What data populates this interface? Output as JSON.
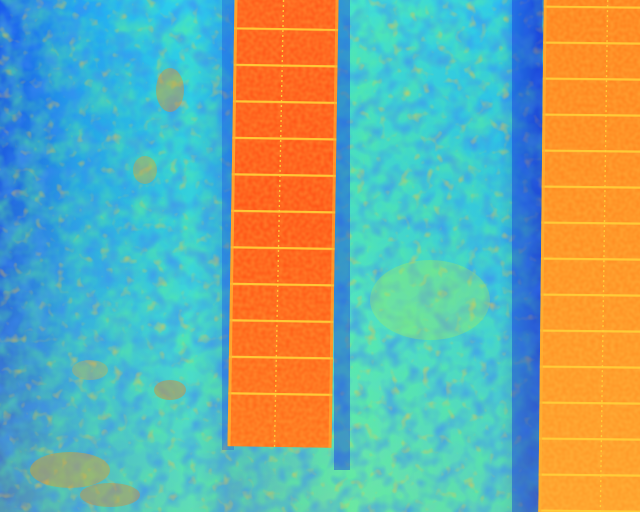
{
  "image": {
    "kind": "thermal-infrared-aerial",
    "subject": "solar-panel-rows-over-vegetation",
    "palette": [
      "#0a1fd6",
      "#1e6cf0",
      "#1fc8f0",
      "#3fe6c8",
      "#9aef4a",
      "#e9ee2a",
      "#ff9a10",
      "#ff5a10",
      "#e83010"
    ],
    "colors": {
      "ground_cool": "#1e6cf0",
      "ground_mid": "#2fd6ea",
      "ground_warm": "#c8f03a",
      "panel_hot": "#ff5a14",
      "panel_hot_right": "#ff8a1e",
      "panel_grid": "#e9ee2a"
    }
  }
}
